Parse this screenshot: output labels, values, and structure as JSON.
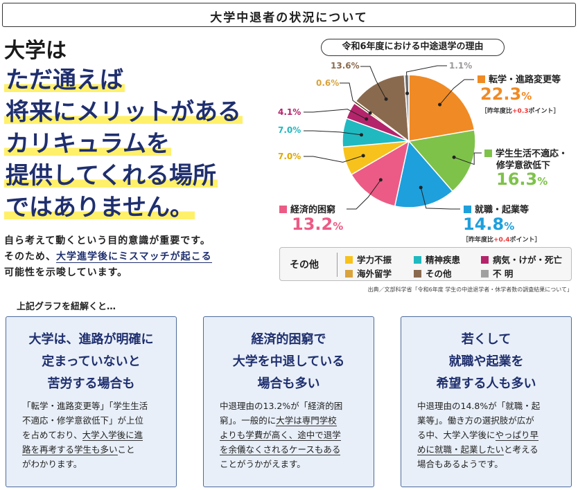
{
  "header": {
    "title": "大学中退者の状況について"
  },
  "headline": {
    "line1": "大学は",
    "line2": "ただ通えば",
    "line3": "将来にメリットがある",
    "line4": "カリキュラムを",
    "line5": "提供してくれる場所",
    "line6": "ではありません。"
  },
  "lead": {
    "l1": "自ら考えて動くという目的意識が重要です。",
    "l2a": "そのため、",
    "l2u": "大学進学後にミスマッチが起こる",
    "l3": "可能性を示唆しています。"
  },
  "chart_data": {
    "type": "pie",
    "title": "令和6年度における中途退学の理由",
    "slices": [
      {
        "name": "転学・進路変更等",
        "value": 22.3,
        "color": "#f08a24",
        "label": "22.3%",
        "diff": "+0.3"
      },
      {
        "name": "学生生活不適応・修学意欲低下",
        "value": 16.3,
        "color": "#7ec24a",
        "label": "16.3%"
      },
      {
        "name": "就職・起業等",
        "value": 14.8,
        "color": "#1ea0dc",
        "label": "14.8%",
        "diff": "+0.4"
      },
      {
        "name": "経済的困窮",
        "value": 13.2,
        "color": "#ec5b85",
        "label": "13.2%"
      },
      {
        "name": "学力不振",
        "value": 7.0,
        "color": "#f7c21c",
        "label": "7.0%"
      },
      {
        "name": "精神疾患",
        "value": 7.0,
        "color": "#20b9c0",
        "label": "7.0%"
      },
      {
        "name": "病気・けが・死亡",
        "value": 4.1,
        "color": "#b4246b",
        "label": "4.1%"
      },
      {
        "name": "海外留学",
        "value": 0.6,
        "color": "#d9a33d",
        "label": "0.6%"
      },
      {
        "name": "その他",
        "value": 13.6,
        "color": "#8a6a4e",
        "label": "13.6%"
      },
      {
        "name": "不明",
        "value": 1.1,
        "color": "#a0a0a0",
        "label": "1.1%"
      }
    ]
  },
  "pie_labels": {
    "tenko": {
      "name": "転学・進路変更等",
      "num": "22.3",
      "unit": "%",
      "diff_pre": "［昨年度比",
      "diff_val": "+0.3",
      "diff_post": "ポイント］"
    },
    "futekio": {
      "name1": "学生生活不適応・",
      "name2": "修学意欲低下",
      "num": "16.3",
      "unit": "%"
    },
    "shushoku": {
      "name": "就職・起業等",
      "num": "14.8",
      "unit": "%",
      "diff_pre": "［昨年度比",
      "diff_val": "+0.4",
      "diff_post": "ポイント］"
    },
    "keizai": {
      "name": "経済的困窮",
      "num": "13.2",
      "unit": "%"
    },
    "gakuryoku": "7.0%",
    "seishin": "7.0%",
    "byoki": "4.1%",
    "ryugaku": "0.6%",
    "sonota": "13.6%",
    "fumei": "1.1%"
  },
  "legend": {
    "label": "その他",
    "items": [
      "学力不振",
      "精神疾患",
      "病気・けが・死亡",
      "海外留学",
      "その他",
      "不 明"
    ]
  },
  "source": "出典／文部科学省「令和6年度 学生の中途退学者・休学者数の調査結果について」",
  "sub_head": "上記グラフを紐解くと…",
  "cards": [
    {
      "h1": "大学は、進路が明確に",
      "h2": "定まっていないと",
      "h3": "苦労する場合も",
      "b1": "「転学・進路変更等」「学生生活",
      "b2": "不適応・修学意欲低下」が上位",
      "b3a": "を占めており、",
      "b3u": "大学入学後に進",
      "b4u": "路を再考する学生も多い",
      "b4b": "こと",
      "b5": "がわかります。"
    },
    {
      "h1": "経済的困窮で",
      "h2": "大学を中退している",
      "h3": "場合も多い",
      "b1": "中退理由の13.2%が「経済的困",
      "b2a": "窮」。一般的に",
      "b2u": "大学は専門学校",
      "b3u": "よりも学費が高く、途中で退学",
      "b4u": "を余儀なくされるケースもある",
      "b5": "ことがうかがえます。"
    },
    {
      "h1": "若くして",
      "h2": "就職や起業を",
      "h3": "希望する人も多い",
      "b1": "中退理由の14.8%が「就職・起",
      "b2": "業等」。働き方の選択肢が広が",
      "b3a": "る中、大学入学後に",
      "b3u": "やっぱり早",
      "b4u": "めに就職・起業したい",
      "b4b": "と考える",
      "b5": "場合もあるようです。"
    }
  ]
}
